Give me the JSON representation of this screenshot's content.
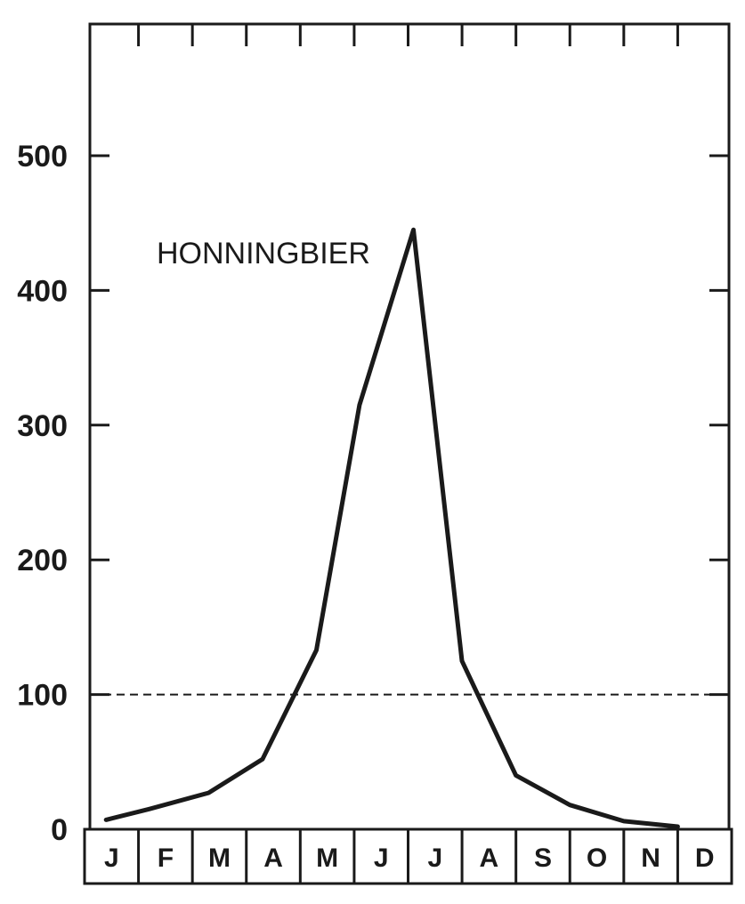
{
  "chart_data": {
    "type": "line",
    "title": "",
    "xlabel": "",
    "ylabel": "",
    "annotation": "HONNINGBIER",
    "categories": [
      "J",
      "F",
      "M",
      "A",
      "M",
      "J",
      "J",
      "A",
      "S",
      "O",
      "N",
      "D"
    ],
    "x": [
      0.3,
      1.1,
      2.2,
      3.2,
      4.2,
      5.0,
      6.0,
      6.9,
      7.9,
      8.9,
      9.9,
      10.9
    ],
    "values": [
      7,
      15,
      27,
      52,
      133,
      315,
      445,
      125,
      40,
      18,
      6,
      2
    ],
    "reference_line": 100,
    "yticks": [
      0,
      100,
      200,
      300,
      400,
      500
    ],
    "ytick_labels": [
      "0",
      "100",
      "200",
      "300",
      "400",
      "500"
    ],
    "ylim": [
      0,
      595
    ],
    "grid": false,
    "colors": {
      "line": "#1a1a1a",
      "frame": "#1a1a1a",
      "background": "#ffffff"
    }
  }
}
